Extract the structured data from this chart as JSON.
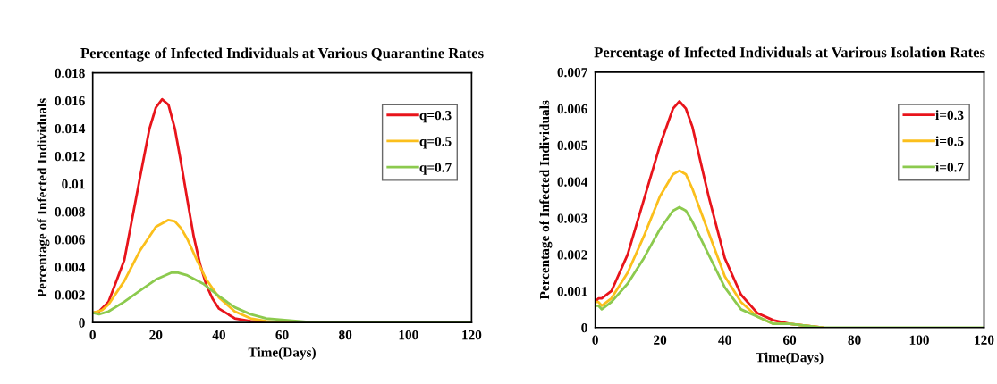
{
  "chart_data": [
    {
      "type": "line",
      "title": "Percentage of Infected Individuals at Various Quarantine Rates",
      "xlabel": "Time(Days)",
      "ylabel": "Percentage of Infected Individuals",
      "xlim": [
        0,
        120
      ],
      "xticks": [
        0,
        20,
        40,
        60,
        80,
        100,
        120
      ],
      "ylim": [
        0,
        0.018
      ],
      "yticks": [
        0,
        0.002,
        0.004,
        0.006,
        0.008,
        0.01,
        0.012,
        0.014,
        0.016,
        0.018
      ],
      "grid": false,
      "legend": "top right",
      "marker": "none",
      "line_style": "solid",
      "series": [
        {
          "name": "q=0.3",
          "color": "#e8141b",
          "x": [
            0,
            2,
            5,
            10,
            15,
            18,
            20,
            22,
            24,
            26,
            28,
            30,
            32,
            34,
            36,
            38,
            40,
            45,
            50,
            60
          ],
          "values": [
            0.0007,
            0.0008,
            0.0015,
            0.0045,
            0.0105,
            0.014,
            0.0155,
            0.0161,
            0.0157,
            0.014,
            0.0115,
            0.0088,
            0.0062,
            0.0042,
            0.0027,
            0.0017,
            0.001,
            0.0003,
            0.0001,
            0
          ]
        },
        {
          "name": "q=0.5",
          "color": "#fbbf1c",
          "x": [
            0,
            3,
            5,
            10,
            15,
            20,
            24,
            26,
            28,
            30,
            33,
            36,
            40,
            45,
            50,
            55,
            60,
            70,
            120
          ],
          "values": [
            0.0007,
            0.0009,
            0.0013,
            0.003,
            0.0052,
            0.0069,
            0.0074,
            0.0073,
            0.0068,
            0.006,
            0.0045,
            0.0031,
            0.0018,
            0.0008,
            0.0003,
            0.0001,
            0,
            0,
            0
          ]
        },
        {
          "name": "q=0.7",
          "color": "#8cca4e",
          "x": [
            0,
            2,
            5,
            10,
            15,
            20,
            25,
            27,
            30,
            35,
            40,
            45,
            50,
            55,
            60,
            70,
            80,
            120
          ],
          "values": [
            0.0007,
            0.0006,
            0.0008,
            0.0015,
            0.0023,
            0.0031,
            0.0036,
            0.0036,
            0.0034,
            0.0028,
            0.0019,
            0.0011,
            0.0006,
            0.0003,
            0.0002,
            0,
            0,
            0
          ]
        }
      ]
    },
    {
      "type": "line",
      "title": "Percentage of Infected Individuals at Varirous Isolation Rates",
      "xlabel": "Time(Days)",
      "ylabel": "Percentage of Infected Individuals",
      "xlim": [
        0,
        120
      ],
      "xticks": [
        0,
        20,
        40,
        60,
        80,
        100,
        120
      ],
      "ylim": [
        0,
        0.007
      ],
      "yticks": [
        0,
        0.001,
        0.002,
        0.003,
        0.004,
        0.005,
        0.006,
        0.007
      ],
      "grid": false,
      "legend": "top right",
      "marker": "none",
      "line_style": "solid",
      "series": [
        {
          "name": "i=0.3",
          "color": "#e8141b",
          "x": [
            0,
            1,
            2,
            5,
            10,
            15,
            20,
            24,
            26,
            28,
            30,
            35,
            40,
            45,
            50,
            55,
            60,
            70
          ],
          "values": [
            0.0007,
            0.0008,
            0.0008,
            0.001,
            0.002,
            0.0035,
            0.005,
            0.006,
            0.0062,
            0.006,
            0.0055,
            0.0036,
            0.0019,
            0.0009,
            0.0004,
            0.0002,
            0.0001,
            0
          ]
        },
        {
          "name": "i=0.5",
          "color": "#fbbf1c",
          "x": [
            0,
            1,
            2,
            5,
            10,
            15,
            20,
            24,
            26,
            28,
            30,
            35,
            40,
            45,
            50,
            55,
            60,
            70
          ],
          "values": [
            0.0007,
            0.0007,
            0.0006,
            0.0008,
            0.0015,
            0.0025,
            0.0036,
            0.0042,
            0.0043,
            0.0042,
            0.0038,
            0.0026,
            0.0014,
            0.0007,
            0.0003,
            0.0001,
            0.0001,
            0
          ]
        },
        {
          "name": "i=0.7",
          "color": "#8cca4e",
          "x": [
            0,
            1,
            2,
            5,
            10,
            15,
            20,
            24,
            26,
            28,
            30,
            35,
            40,
            45,
            50,
            55,
            60,
            70,
            120
          ],
          "values": [
            0.0006,
            0.0006,
            0.0005,
            0.0007,
            0.0012,
            0.0019,
            0.0027,
            0.0032,
            0.0033,
            0.0032,
            0.0029,
            0.002,
            0.0011,
            0.0005,
            0.0003,
            0.0001,
            0.0001,
            0,
            0
          ]
        }
      ]
    }
  ]
}
